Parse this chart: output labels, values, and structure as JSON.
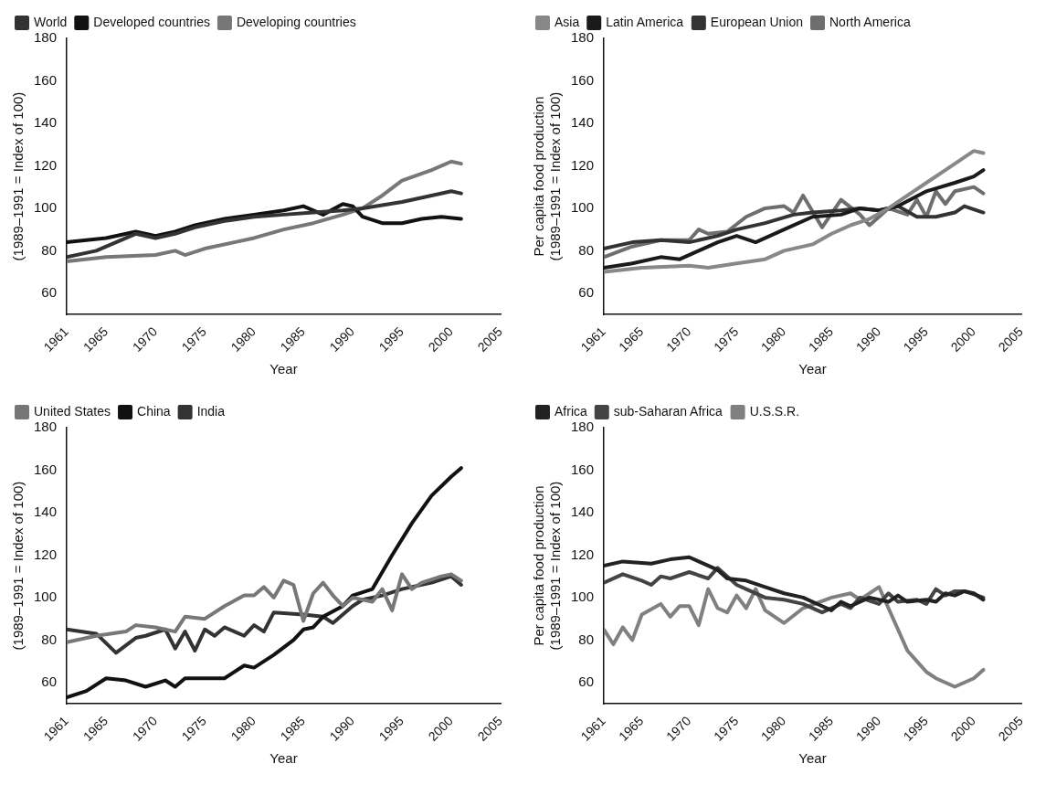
{
  "chart_data": [
    {
      "type": "line",
      "xlabel": "Year",
      "ylabel": "(1989–1991 = Index of 100)",
      "xlim": [
        1961,
        2005
      ],
      "xticks": [
        1961,
        1965,
        1970,
        1975,
        1980,
        1985,
        1990,
        1995,
        2000,
        2005
      ],
      "ylim": [
        50,
        180
      ],
      "yticks": [
        60,
        80,
        100,
        120,
        140,
        160,
        180
      ],
      "grid": false,
      "legend": "top left",
      "marker": "none",
      "line_style": "solid",
      "series": [
        {
          "name": "World",
          "color": "#333333",
          "x": [
            1961,
            1964,
            1966,
            1968,
            1970,
            1972,
            1974,
            1977,
            1980,
            1983,
            1986,
            1989,
            1991,
            1995,
            1998,
            2000,
            2001
          ],
          "values": [
            77,
            80,
            84,
            88,
            86,
            88,
            91,
            94,
            96,
            97,
            98,
            99,
            100,
            103,
            106,
            108,
            107
          ]
        },
        {
          "name": "Developed countries",
          "color": "#111111",
          "x": [
            1961,
            1965,
            1968,
            1970,
            1972,
            1974,
            1977,
            1980,
            1983,
            1985,
            1987,
            1989,
            1990,
            1991,
            1993,
            1995,
            1997,
            1999,
            2001
          ],
          "values": [
            84,
            86,
            89,
            87,
            89,
            92,
            95,
            97,
            99,
            101,
            97,
            102,
            101,
            96,
            93,
            93,
            95,
            96,
            95
          ]
        },
        {
          "name": "Developing countries",
          "color": "#777777",
          "x": [
            1961,
            1965,
            1970,
            1972,
            1973,
            1975,
            1978,
            1980,
            1983,
            1986,
            1989,
            1991,
            1993,
            1995,
            1998,
            2000,
            2001
          ],
          "values": [
            75,
            77,
            78,
            80,
            78,
            81,
            84,
            86,
            90,
            93,
            97,
            100,
            106,
            113,
            118,
            122,
            121
          ]
        }
      ]
    },
    {
      "type": "line",
      "xlabel": "Year",
      "ylabel": "Per capita food production\n(1989–1991 = Index of 100)",
      "xlim": [
        1961,
        2005
      ],
      "xticks": [
        1961,
        1965,
        1970,
        1975,
        1980,
        1985,
        1990,
        1995,
        2000,
        2005
      ],
      "ylim": [
        50,
        180
      ],
      "yticks": [
        60,
        80,
        100,
        120,
        140,
        160,
        180
      ],
      "grid": false,
      "legend": "top left",
      "marker": "none",
      "line_style": "solid",
      "series": [
        {
          "name": "Asia",
          "color": "#888888",
          "x": [
            1961,
            1965,
            1970,
            1972,
            1975,
            1978,
            1980,
            1983,
            1985,
            1987,
            1989,
            1991,
            1993,
            1995,
            1997,
            1999,
            2000,
            2001
          ],
          "values": [
            70,
            72,
            73,
            72,
            74,
            76,
            80,
            83,
            88,
            92,
            95,
            100,
            106,
            112,
            118,
            124,
            127,
            126
          ]
        },
        {
          "name": "Latin America",
          "color": "#1a1a1a",
          "x": [
            1961,
            1964,
            1967,
            1969,
            1971,
            1973,
            1975,
            1977,
            1980,
            1983,
            1986,
            1988,
            1990,
            1992,
            1995,
            1998,
            2000,
            2001
          ],
          "values": [
            72,
            74,
            77,
            76,
            80,
            84,
            87,
            84,
            90,
            96,
            97,
            100,
            99,
            101,
            108,
            112,
            115,
            118
          ]
        },
        {
          "name": "European Union",
          "color": "#333333",
          "x": [
            1961,
            1964,
            1967,
            1970,
            1973,
            1975,
            1978,
            1981,
            1983,
            1986,
            1988,
            1990,
            1992,
            1994,
            1996,
            1998,
            1999,
            2001
          ],
          "values": [
            81,
            84,
            85,
            84,
            87,
            90,
            93,
            97,
            98,
            99,
            100,
            99,
            101,
            96,
            96,
            98,
            101,
            98
          ]
        },
        {
          "name": "North America",
          "color": "#6e6e6e",
          "x": [
            1961,
            1964,
            1967,
            1970,
            1971,
            1972,
            1974,
            1976,
            1978,
            1980,
            1981,
            1982,
            1984,
            1986,
            1988,
            1989,
            1991,
            1993,
            1994,
            1995,
            1996,
            1997,
            1998,
            2000,
            2001
          ],
          "values": [
            77,
            82,
            85,
            85,
            90,
            88,
            89,
            96,
            100,
            101,
            98,
            106,
            91,
            104,
            97,
            92,
            100,
            97,
            104,
            96,
            108,
            102,
            108,
            110,
            107
          ]
        }
      ]
    },
    {
      "type": "line",
      "xlabel": "Year",
      "ylabel": "(1989–1991 = Index of 100)",
      "xlim": [
        1961,
        2005
      ],
      "xticks": [
        1961,
        1965,
        1970,
        1975,
        1980,
        1985,
        1990,
        1995,
        2000,
        2005
      ],
      "ylim": [
        50,
        180
      ],
      "yticks": [
        60,
        80,
        100,
        120,
        140,
        160,
        180
      ],
      "grid": false,
      "legend": "top left",
      "marker": "none",
      "line_style": "solid",
      "series": [
        {
          "name": "United States",
          "color": "#777777",
          "x": [
            1961,
            1964,
            1967,
            1968,
            1970,
            1972,
            1973,
            1975,
            1977,
            1979,
            1980,
            1981,
            1982,
            1983,
            1984,
            1985,
            1986,
            1987,
            1988,
            1989,
            1990,
            1992,
            1993,
            1994,
            1995,
            1996,
            1997,
            1999,
            2000,
            2001
          ],
          "values": [
            79,
            82,
            84,
            87,
            86,
            84,
            91,
            90,
            96,
            101,
            101,
            105,
            100,
            108,
            106,
            89,
            102,
            107,
            101,
            96,
            100,
            98,
            104,
            94,
            111,
            104,
            107,
            110,
            111,
            108
          ]
        },
        {
          "name": "China",
          "color": "#111111",
          "x": [
            1961,
            1963,
            1965,
            1967,
            1969,
            1971,
            1972,
            1973,
            1975,
            1977,
            1979,
            1980,
            1982,
            1984,
            1985,
            1986,
            1987,
            1989,
            1990,
            1992,
            1994,
            1996,
            1998,
            2000,
            2001
          ],
          "values": [
            53,
            56,
            62,
            61,
            58,
            61,
            58,
            62,
            62,
            62,
            68,
            67,
            73,
            80,
            85,
            86,
            91,
            96,
            101,
            104,
            120,
            135,
            148,
            157,
            161
          ]
        },
        {
          "name": "India",
          "color": "#333333",
          "x": [
            1961,
            1964,
            1966,
            1968,
            1969,
            1971,
            1972,
            1973,
            1974,
            1975,
            1976,
            1977,
            1979,
            1980,
            1981,
            1982,
            1985,
            1987,
            1988,
            1990,
            1991,
            1993,
            1995,
            1998,
            2000,
            2001
          ],
          "values": [
            85,
            83,
            74,
            81,
            82,
            85,
            76,
            84,
            75,
            85,
            82,
            86,
            82,
            87,
            84,
            93,
            92,
            91,
            88,
            96,
            99,
            101,
            104,
            107,
            110,
            106
          ]
        }
      ]
    },
    {
      "type": "line",
      "xlabel": "Year",
      "ylabel": "Per capita food production\n(1989–1991 = Index of 100)",
      "xlim": [
        1961,
        2005
      ],
      "xticks": [
        1961,
        1965,
        1970,
        1975,
        1980,
        1985,
        1990,
        1995,
        2000,
        2005
      ],
      "ylim": [
        50,
        180
      ],
      "yticks": [
        60,
        80,
        100,
        120,
        140,
        160,
        180
      ],
      "grid": false,
      "legend": "top left",
      "marker": "none",
      "line_style": "solid",
      "series": [
        {
          "name": "Africa",
          "color": "#222222",
          "x": [
            1961,
            1963,
            1966,
            1968,
            1970,
            1971,
            1973,
            1974,
            1976,
            1978,
            1980,
            1982,
            1984,
            1985,
            1986,
            1987,
            1989,
            1991,
            1992,
            1993,
            1995,
            1996,
            1997,
            1998,
            1999,
            2000,
            2001
          ],
          "values": [
            115,
            117,
            116,
            118,
            119,
            117,
            113,
            109,
            108,
            105,
            102,
            100,
            96,
            94,
            98,
            96,
            100,
            98,
            101,
            98,
            99,
            98,
            102,
            101,
            103,
            102,
            99
          ]
        },
        {
          "name": "sub-Saharan Africa",
          "color": "#444444",
          "x": [
            1961,
            1963,
            1965,
            1966,
            1967,
            1968,
            1970,
            1972,
            1973,
            1975,
            1976,
            1978,
            1980,
            1982,
            1984,
            1986,
            1987,
            1988,
            1990,
            1991,
            1992,
            1994,
            1995,
            1996,
            1997,
            1998,
            1999,
            2001
          ],
          "values": [
            107,
            111,
            108,
            106,
            110,
            109,
            112,
            109,
            114,
            106,
            104,
            100,
            99,
            97,
            93,
            97,
            95,
            100,
            97,
            102,
            98,
            99,
            97,
            104,
            101,
            103,
            103,
            100
          ]
        },
        {
          "name": "U.S.S.R.",
          "color": "#808080",
          "x": [
            1961,
            1962,
            1963,
            1964,
            1965,
            1967,
            1968,
            1969,
            1970,
            1971,
            1972,
            1973,
            1974,
            1975,
            1976,
            1977,
            1978,
            1980,
            1982,
            1985,
            1987,
            1988,
            1990,
            1991,
            1992,
            1993,
            1994,
            1995,
            1996,
            1998,
            2000,
            2001
          ],
          "values": [
            85,
            78,
            86,
            80,
            92,
            97,
            91,
            96,
            96,
            87,
            104,
            95,
            93,
            101,
            95,
            104,
            94,
            88,
            95,
            100,
            102,
            99,
            105,
            95,
            85,
            75,
            70,
            65,
            62,
            58,
            62,
            66
          ]
        }
      ]
    }
  ]
}
